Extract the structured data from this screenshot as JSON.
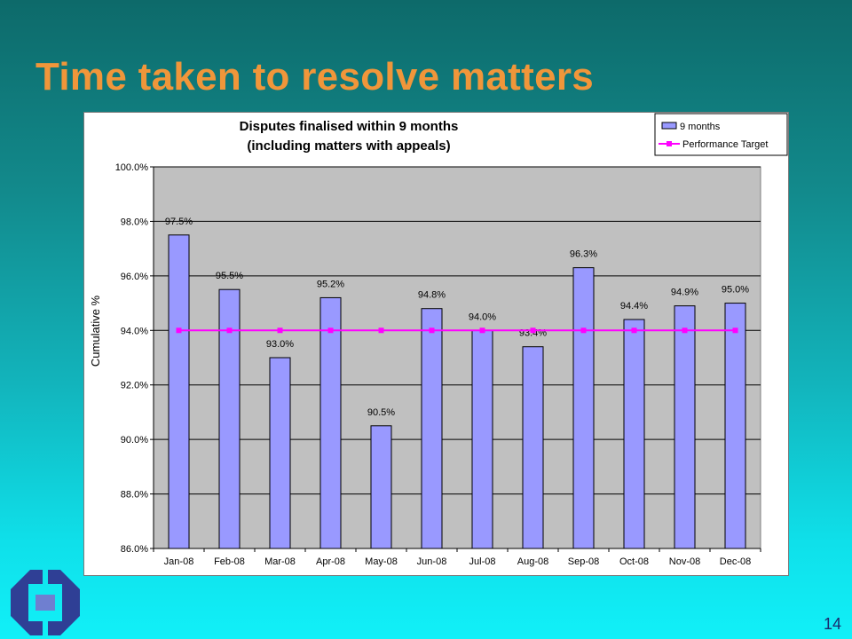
{
  "slide": {
    "title": "Time taken to resolve matters",
    "page_number": "14"
  },
  "colors": {
    "title": "#f0963a",
    "bar_fill": "#9999ff",
    "target_line": "#ff00ff",
    "plot_bg": "#c0c0c0"
  },
  "logo": {
    "icon": "interlocking-arrows-logo-icon"
  },
  "chart_data": {
    "type": "bar",
    "title_lines": [
      "Disputes finalised within 9 months",
      "(including matters with appeals)"
    ],
    "ylabel": "Cumulative %",
    "xlabel": "",
    "categories": [
      "Jan-08",
      "Feb-08",
      "Mar-08",
      "Apr-08",
      "May-08",
      "Jun-08",
      "Jul-08",
      "Aug-08",
      "Sep-08",
      "Oct-08",
      "Nov-08",
      "Dec-08"
    ],
    "series": [
      {
        "name": "9 months",
        "kind": "bar",
        "values": [
          97.5,
          95.5,
          93.0,
          95.2,
          90.5,
          94.8,
          94.0,
          93.4,
          96.3,
          94.4,
          94.9,
          95.0
        ],
        "labels": [
          "97.5%",
          "95.5%",
          "93.0%",
          "95.2%",
          "90.5%",
          "94.8%",
          "94.0%",
          "93.4%",
          "96.3%",
          "94.4%",
          "94.9%",
          "95.0%"
        ]
      },
      {
        "name": "Performance Target",
        "kind": "line",
        "values": [
          94.0,
          94.0,
          94.0,
          94.0,
          94.0,
          94.0,
          94.0,
          94.0,
          94.0,
          94.0,
          94.0,
          94.0
        ]
      }
    ],
    "ylim": [
      86.0,
      100.0
    ],
    "yticks": [
      86.0,
      88.0,
      90.0,
      92.0,
      94.0,
      96.0,
      98.0,
      100.0
    ],
    "ytick_labels": [
      "86.0%",
      "88.0%",
      "90.0%",
      "92.0%",
      "94.0%",
      "96.0%",
      "98.0%",
      "100.0%"
    ],
    "grid": true,
    "legend_position": "top-right"
  }
}
